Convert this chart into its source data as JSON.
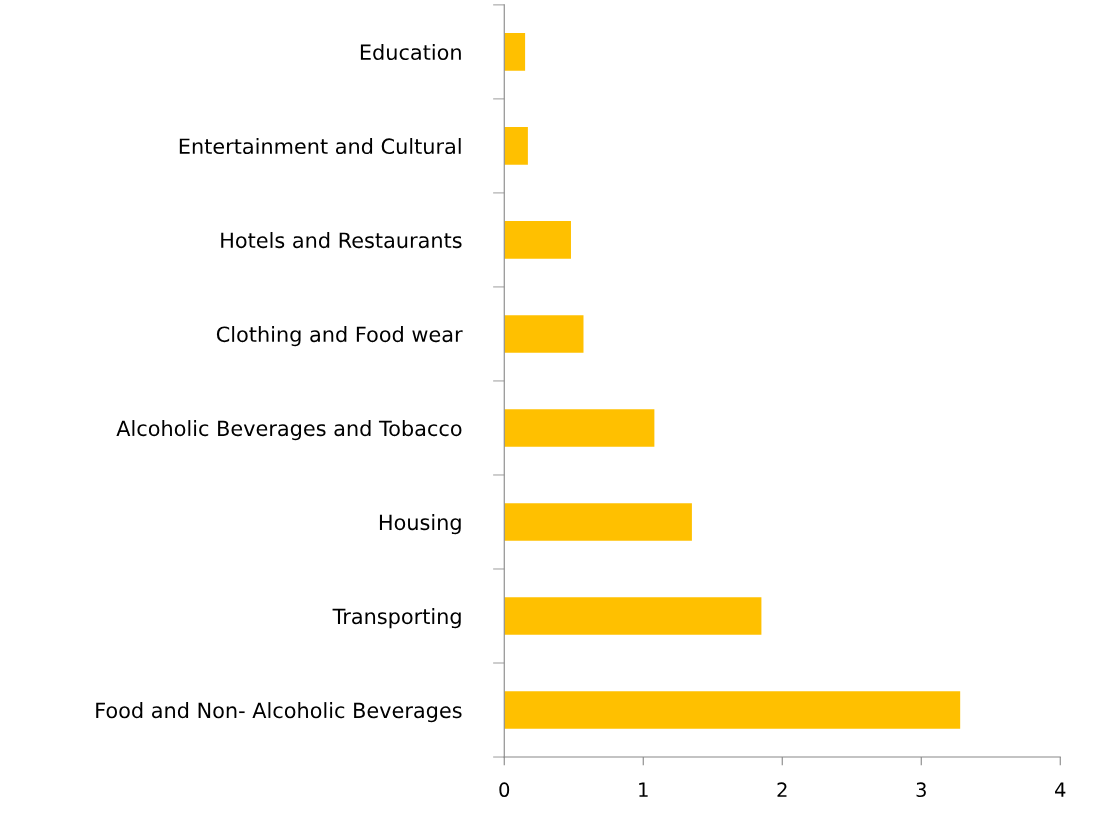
{
  "chart_data": {
    "type": "bar",
    "orientation": "horizontal",
    "categories": [
      "Education",
      "Entertainment and Cultural",
      "Hotels and Restaurants",
      "Clothing and Food wear",
      "Alcoholic Beverages and Tobacco",
      "Housing",
      "Transporting",
      "Food and Non- Alcoholic Beverages"
    ],
    "values": [
      0.15,
      0.17,
      0.48,
      0.57,
      1.08,
      1.35,
      1.85,
      3.28
    ],
    "color": "#ffc000",
    "xlim": [
      0,
      4
    ],
    "xticks": [
      0,
      1,
      2,
      3,
      4
    ],
    "grid": false,
    "legend": false
  }
}
